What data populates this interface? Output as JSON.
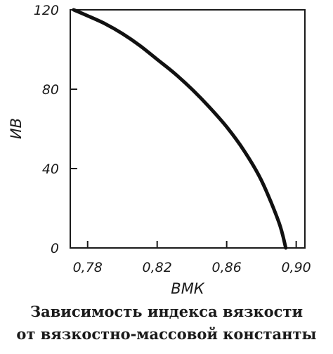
{
  "chart_data": {
    "type": "line",
    "title": "Зависимость индекса вязкости от вязкостно-массовой константы",
    "title_lines": [
      "Зависимость индекса вязкости",
      "от вязкостно-массовой константы"
    ],
    "xlabel": "ВМК",
    "ylabel": "ИВ",
    "xlim": [
      0.77,
      0.905
    ],
    "ylim": [
      0,
      120
    ],
    "x_ticks": [
      0.78,
      0.82,
      0.86,
      0.9
    ],
    "x_tick_labels": [
      "0,78",
      "0,82",
      "0,86",
      "0,90"
    ],
    "y_ticks": [
      0,
      40,
      80,
      120
    ],
    "y_tick_labels": [
      "0",
      "40",
      "80",
      "120"
    ],
    "grid": false,
    "series": [
      {
        "x": [
          0.772,
          0.78,
          0.79,
          0.8,
          0.81,
          0.82,
          0.83,
          0.84,
          0.85,
          0.86,
          0.87,
          0.88,
          0.89,
          0.894
        ],
        "y": [
          120,
          117,
          113,
          108,
          102,
          95,
          88,
          80,
          71,
          61,
          49,
          34,
          13,
          0
        ]
      }
    ]
  }
}
